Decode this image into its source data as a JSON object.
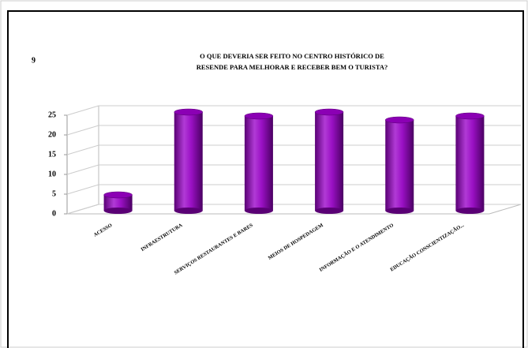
{
  "page_number": "9",
  "chart_data": {
    "type": "bar",
    "title_lines": [
      "O QUE DEVERIA SER FEITO NO CENTRO HISTÓRICO DE",
      "RESENDE PARA MELHORAR E  RECEBER BEM O TURISTA?"
    ],
    "categories": [
      "ACESSO",
      "INFRAESTRUTURA",
      "SERVIÇOS RESTAURANTES E BARES",
      "MEIOS DE HOSPEDAGEM",
      "INFORMAÇÃO E O ATENDIMENTO",
      "EDUCAÇÃO  CONSCIENTIZAÇÃO..."
    ],
    "values": [
      4,
      25,
      24,
      25,
      23,
      24
    ],
    "color": "#8b00b4",
    "ylim": [
      0,
      25
    ],
    "yticks": [
      0,
      5,
      10,
      15,
      20,
      25
    ],
    "grid": true
  }
}
